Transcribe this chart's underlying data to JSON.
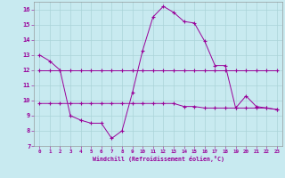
{
  "background_color": "#c8eaf0",
  "grid_color": "#aad4d8",
  "line_color": "#990099",
  "xlim": [
    -0.5,
    23.5
  ],
  "ylim": [
    7,
    16.5
  ],
  "yticks": [
    7,
    8,
    9,
    10,
    11,
    12,
    13,
    14,
    15,
    16
  ],
  "xticks": [
    0,
    1,
    2,
    3,
    4,
    5,
    6,
    7,
    8,
    9,
    10,
    11,
    12,
    13,
    14,
    15,
    16,
    17,
    18,
    19,
    20,
    21,
    22,
    23
  ],
  "xlabel": "Windchill (Refroidissement éolien,°C)",
  "line1_x": [
    0,
    1,
    2,
    3,
    4,
    5,
    6,
    7,
    8,
    9,
    10,
    11,
    12,
    13,
    14,
    15,
    16,
    17,
    18,
    19,
    20,
    21,
    22,
    23
  ],
  "line1_y": [
    13.0,
    12.6,
    12.0,
    9.0,
    8.7,
    8.5,
    8.5,
    7.5,
    8.0,
    10.5,
    13.3,
    15.5,
    16.2,
    15.8,
    15.2,
    15.1,
    13.9,
    12.3,
    12.3,
    9.5,
    10.3,
    9.6,
    9.5,
    9.4
  ],
  "line2_x": [
    0,
    1,
    2,
    3,
    4,
    5,
    6,
    7,
    8,
    9,
    10,
    11,
    12,
    13,
    14,
    15,
    16,
    17,
    18,
    19,
    20,
    21,
    22,
    23
  ],
  "line2_y": [
    12.0,
    12.0,
    12.0,
    12.0,
    12.0,
    12.0,
    12.0,
    12.0,
    12.0,
    12.0,
    12.0,
    12.0,
    12.0,
    12.0,
    12.0,
    12.0,
    12.0,
    12.0,
    12.0,
    12.0,
    12.0,
    12.0,
    12.0,
    12.0
  ],
  "line3_x": [
    0,
    1,
    2,
    3,
    4,
    5,
    6,
    7,
    8,
    9,
    10,
    11,
    12,
    13,
    14,
    15,
    16,
    17,
    18,
    19,
    20,
    21,
    22,
    23
  ],
  "line3_y": [
    9.8,
    9.8,
    9.8,
    9.8,
    9.8,
    9.8,
    9.8,
    9.8,
    9.8,
    9.8,
    9.8,
    9.8,
    9.8,
    9.8,
    9.6,
    9.6,
    9.5,
    9.5,
    9.5,
    9.5,
    9.5,
    9.5,
    9.5,
    9.4
  ]
}
